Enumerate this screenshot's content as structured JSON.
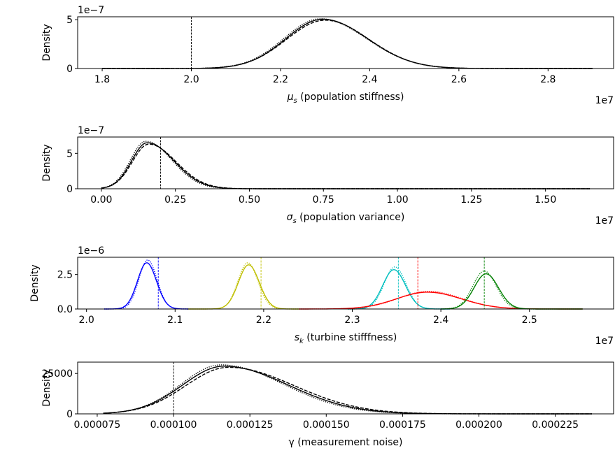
{
  "figure": {
    "background": "#ffffff",
    "line_color": "#000000"
  },
  "chart_data": [
    {
      "type": "line",
      "title": "",
      "xlabel_math": "μ",
      "xlabel_sub": "s",
      "xlabel_rest": " (population stiffness)",
      "ylabel": "Density",
      "x_offset_label": "1e7",
      "y_offset_label": "1e−7",
      "xlim": [
        1.745,
        2.947
      ],
      "ylim": [
        0,
        5.3
      ],
      "xticks": [
        1.8,
        2.0,
        2.2,
        2.4,
        2.6,
        2.8
      ],
      "xtick_labels": [
        "1.8",
        "2.0",
        "2.2",
        "2.4",
        "2.6",
        "2.8"
      ],
      "yticks": [
        0,
        5
      ],
      "ytick_labels": [
        "0",
        "5"
      ],
      "grid": false,
      "true_value": {
        "x": 2.0,
        "color": "#000000"
      },
      "series": [
        {
          "color": "#000000",
          "style": "solid",
          "x_range": [
            1.8,
            2.9
          ],
          "curve": {
            "mode": 2.295,
            "peak": 5.05,
            "sigma_left": 0.083,
            "sigma_right": 0.1
          }
        },
        {
          "color": "#000000",
          "style": "dashed",
          "x_range": [
            1.8,
            2.9
          ],
          "curve": {
            "mode": 2.3,
            "peak": 4.95,
            "sigma_left": 0.086,
            "sigma_right": 0.098
          }
        },
        {
          "color": "#000000",
          "style": "dotted",
          "x_range": [
            1.8,
            2.9
          ],
          "curve": {
            "mode": 2.29,
            "peak": 5.1,
            "sigma_left": 0.082,
            "sigma_right": 0.102
          }
        }
      ]
    },
    {
      "type": "line",
      "title": "",
      "xlabel_math": "σ",
      "xlabel_sub": "s",
      "xlabel_rest": " (population variance)",
      "ylabel": "Density",
      "x_offset_label": "1e7",
      "y_offset_label": "1e−7",
      "xlim": [
        -0.08,
        1.73
      ],
      "ylim": [
        0,
        7.3
      ],
      "xticks": [
        0.0,
        0.25,
        0.5,
        0.75,
        1.0,
        1.25,
        1.5
      ],
      "xtick_labels": [
        "0.00",
        "0.25",
        "0.50",
        "0.75",
        "1.00",
        "1.25",
        "1.50"
      ],
      "yticks": [
        0,
        5
      ],
      "ytick_labels": [
        "0",
        "5"
      ],
      "grid": false,
      "true_value": {
        "x": 0.2,
        "color": "#000000"
      },
      "series": [
        {
          "color": "#000000",
          "style": "solid",
          "x_range": [
            0.0,
            1.65
          ],
          "curve": {
            "mode": 0.155,
            "peak": 6.5,
            "sigma_left": 0.053,
            "sigma_right": 0.09
          }
        },
        {
          "color": "#000000",
          "style": "dashed",
          "x_range": [
            0.0,
            1.65
          ],
          "curve": {
            "mode": 0.16,
            "peak": 6.3,
            "sigma_left": 0.055,
            "sigma_right": 0.092
          }
        },
        {
          "color": "#000000",
          "style": "dotted",
          "x_range": [
            0.0,
            1.65
          ],
          "curve": {
            "mode": 0.15,
            "peak": 6.7,
            "sigma_left": 0.052,
            "sigma_right": 0.088
          }
        }
      ]
    },
    {
      "type": "line",
      "title": "",
      "xlabel_math": "s",
      "xlabel_sub": "k",
      "xlabel_rest": " (turbine stifffness)",
      "ylabel": "Density",
      "x_offset_label": "1e7",
      "y_offset_label": "1e−6",
      "xlim": [
        1.99,
        2.595
      ],
      "ylim": [
        0,
        3.75
      ],
      "xticks": [
        2.0,
        2.1,
        2.2,
        2.3,
        2.4,
        2.5
      ],
      "xtick_labels": [
        "2.0",
        "2.1",
        "2.2",
        "2.3",
        "2.4",
        "2.5"
      ],
      "yticks": [
        0.0,
        2.5
      ],
      "ytick_labels": [
        "0.0",
        "2.5"
      ],
      "grid": false,
      "series": [
        {
          "color": "#0000ff",
          "style": "solid",
          "x_range": [
            2.02,
            2.115
          ],
          "curve": {
            "mode": 2.068,
            "peak": 3.35,
            "sigma_left": 0.0105,
            "sigma_right": 0.011
          },
          "true_value": 2.081
        },
        {
          "color": "#0000ff",
          "style": "dotted",
          "x_range": [
            2.02,
            2.115
          ],
          "curve": {
            "mode": 2.069,
            "peak": 3.55,
            "sigma_left": 0.01,
            "sigma_right": 0.0105
          }
        },
        {
          "color": "#bfbf00",
          "style": "solid",
          "x_range": [
            2.115,
            2.24
          ],
          "curve": {
            "mode": 2.183,
            "peak": 3.2,
            "sigma_left": 0.0115,
            "sigma_right": 0.012
          },
          "true_value": 2.197
        },
        {
          "color": "#bfbf00",
          "style": "dotted",
          "x_range": [
            2.115,
            2.24
          ],
          "curve": {
            "mode": 2.182,
            "peak": 3.35,
            "sigma_left": 0.011,
            "sigma_right": 0.0115
          }
        },
        {
          "color": "#00bfbf",
          "style": "solid",
          "x_range": [
            2.295,
            2.41
          ],
          "curve": {
            "mode": 2.347,
            "peak": 2.85,
            "sigma_left": 0.0125,
            "sigma_right": 0.013
          },
          "true_value": 2.352
        },
        {
          "color": "#00bfbf",
          "style": "dotted",
          "x_range": [
            2.295,
            2.41
          ],
          "curve": {
            "mode": 2.348,
            "peak": 3.05,
            "sigma_left": 0.012,
            "sigma_right": 0.0125
          }
        },
        {
          "color": "#ff0000",
          "style": "solid",
          "x_range": [
            2.24,
            2.56
          ],
          "curve": {
            "mode": 2.385,
            "peak": 1.22,
            "sigma_left": 0.035,
            "sigma_right": 0.038
          },
          "true_value": 2.374
        },
        {
          "color": "#ff0000",
          "style": "dotted",
          "x_range": [
            2.24,
            2.56
          ],
          "curve": {
            "mode": 2.386,
            "peak": 1.28,
            "sigma_left": 0.034,
            "sigma_right": 0.037
          }
        },
        {
          "color": "#008000",
          "style": "solid",
          "x_range": [
            2.4,
            2.56
          ],
          "curve": {
            "mode": 2.451,
            "peak": 2.55,
            "sigma_left": 0.0135,
            "sigma_right": 0.014
          },
          "true_value": 2.449
        },
        {
          "color": "#008000",
          "style": "dotted",
          "x_range": [
            2.4,
            2.56
          ],
          "curve": {
            "mode": 2.449,
            "peak": 2.75,
            "sigma_left": 0.013,
            "sigma_right": 0.0135
          }
        }
      ]
    },
    {
      "type": "line",
      "title": "",
      "xlabel_math": "",
      "xlabel_sub": "",
      "xlabel_rest": "γ (measurement noise)",
      "ylabel": "Density",
      "x_offset_label": "",
      "y_offset_label": "",
      "xlim": [
        6.86e-05,
        0.0002441
      ],
      "ylim": [
        0,
        32000
      ],
      "xticks": [
        7.5e-05,
        0.0001,
        0.000125,
        0.00015,
        0.000175,
        0.0002,
        0.000225
      ],
      "xtick_labels": [
        "0.000075",
        "0.000100",
        "0.000125",
        "0.000150",
        "0.000175",
        "0.000200",
        "0.000225"
      ],
      "yticks": [
        0,
        25000
      ],
      "ytick_labels": [
        "0",
        "25000"
      ],
      "grid": false,
      "true_value": {
        "x": 0.0001,
        "color": "#000000"
      },
      "series": [
        {
          "color": "#000000",
          "style": "solid",
          "x_range": [
            7.7e-05,
            0.000237
          ],
          "curve": {
            "mode": 0.0001165,
            "peak": 29500,
            "sigma_left": 1.35e-05,
            "sigma_right": 2.1e-05
          }
        },
        {
          "color": "#000000",
          "style": "dashed",
          "x_range": [
            7.7e-05,
            0.000237
          ],
          "curve": {
            "mode": 0.000118,
            "peak": 28800,
            "sigma_left": 1.4e-05,
            "sigma_right": 2.15e-05
          }
        },
        {
          "color": "#000000",
          "style": "dotted",
          "x_range": [
            7.7e-05,
            0.000237
          ],
          "curve": {
            "mode": 0.0001155,
            "peak": 30300,
            "sigma_left": 1.3e-05,
            "sigma_right": 2.05e-05
          }
        }
      ]
    }
  ]
}
